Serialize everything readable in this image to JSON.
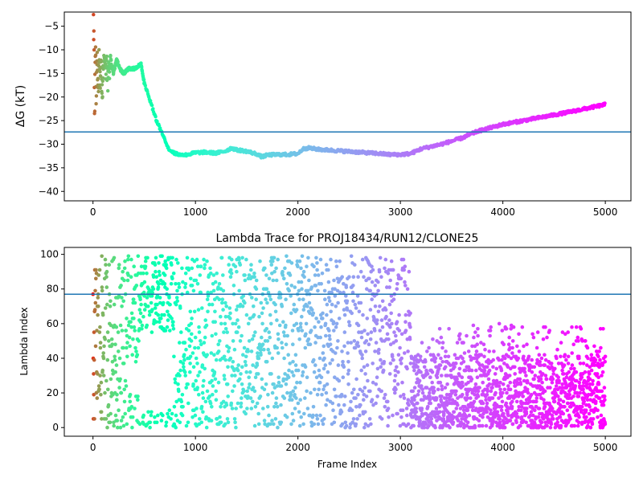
{
  "chart_data": [
    {
      "type": "scatter",
      "title": "",
      "xlabel": "",
      "ylabel": "ΔG (kT)",
      "xlim": [
        -280,
        5250
      ],
      "ylim": [
        -42,
        -2
      ],
      "xticks": [
        0,
        1000,
        2000,
        3000,
        4000,
        5000
      ],
      "yticks": [
        -40,
        -35,
        -30,
        -25,
        -20,
        -15,
        -10,
        -5
      ],
      "hline": -27.4,
      "colormap": "rainbow (color encodes frame index, early = red, late = violet)",
      "trace": [
        [
          5,
          -3
        ],
        [
          10,
          -10
        ],
        [
          15,
          -25
        ],
        [
          20,
          -16
        ],
        [
          25,
          -9
        ],
        [
          30,
          -20
        ],
        [
          40,
          -12
        ],
        [
          50,
          -18
        ],
        [
          60,
          -11
        ],
        [
          70,
          -16
        ],
        [
          80,
          -13
        ],
        [
          90,
          -19
        ],
        [
          100,
          -14
        ],
        [
          110,
          -10
        ],
        [
          120,
          -15
        ],
        [
          130,
          -12
        ],
        [
          140,
          -16
        ],
        [
          160,
          -15
        ],
        [
          180,
          -13
        ],
        [
          200,
          -15
        ],
        [
          230,
          -12
        ],
        [
          260,
          -14
        ],
        [
          300,
          -15
        ],
        [
          350,
          -14
        ],
        [
          400,
          -14
        ],
        [
          440,
          -13.5
        ],
        [
          470,
          -13
        ],
        [
          500,
          -17
        ],
        [
          560,
          -21
        ],
        [
          620,
          -25
        ],
        [
          680,
          -28
        ],
        [
          740,
          -31
        ],
        [
          800,
          -32
        ],
        [
          900,
          -32.3
        ],
        [
          1000,
          -31.8
        ],
        [
          1100,
          -31.7
        ],
        [
          1200,
          -31.9
        ],
        [
          1300,
          -31.4
        ],
        [
          1350,
          -30.8
        ],
        [
          1400,
          -31.2
        ],
        [
          1500,
          -31.5
        ],
        [
          1600,
          -32.1
        ],
        [
          1650,
          -32.7
        ],
        [
          1700,
          -32.3
        ],
        [
          1800,
          -32.2
        ],
        [
          1900,
          -32.2
        ],
        [
          2000,
          -32
        ],
        [
          2050,
          -31
        ],
        [
          2100,
          -30.8
        ],
        [
          2200,
          -31.1
        ],
        [
          2400,
          -31.4
        ],
        [
          2600,
          -31.7
        ],
        [
          2800,
          -32
        ],
        [
          2900,
          -32.2
        ],
        [
          3000,
          -32.2
        ],
        [
          3100,
          -32
        ],
        [
          3200,
          -31
        ],
        [
          3400,
          -30
        ],
        [
          3600,
          -28.7
        ],
        [
          3750,
          -27.3
        ],
        [
          3800,
          -27
        ],
        [
          4000,
          -25.8
        ],
        [
          4200,
          -25
        ],
        [
          4400,
          -24.2
        ],
        [
          4600,
          -23.4
        ],
        [
          4800,
          -22.5
        ],
        [
          5000,
          -21.6
        ]
      ]
    },
    {
      "type": "scatter",
      "title": "Lambda Trace for PROJ18434/RUN12/CLONE25",
      "xlabel": "Frame Index",
      "ylabel": "Lambda Index",
      "xlim": [
        -280,
        5250
      ],
      "ylim": [
        -5,
        104
      ],
      "xticks": [
        0,
        1000,
        2000,
        3000,
        4000,
        5000
      ],
      "yticks": [
        0,
        20,
        40,
        60,
        80,
        100
      ],
      "hline": 77,
      "colormap": "rainbow (color encodes frame index, early = red, late = violet)",
      "regimes": [
        {
          "x_range": [
            0,
            3100
          ],
          "lambda_range": [
            0,
            99
          ],
          "description": "dense random sampling across all lambda windows"
        },
        {
          "x_range": [
            3100,
            5000
          ],
          "lambda_range": [
            0,
            45
          ],
          "description": "sampling confined mostly to low lambda windows, sparse up to ~70"
        }
      ]
    }
  ]
}
